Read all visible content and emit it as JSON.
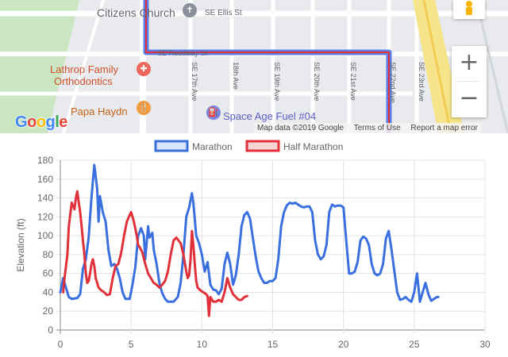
{
  "map": {
    "places": {
      "citizens_church": "Citizens Church",
      "lathrop_line1": "Lathrop Family",
      "lathrop_line2": "Orthodontics",
      "papa_haydn": "Papa Haydn",
      "space_age": "Space Age Fuel #04"
    },
    "streets": {
      "ellis": "SE Ellis St",
      "reedway": "SE Reedway St",
      "ave17": "SE 17th Ave",
      "ave18": "18th Ave",
      "ave19": "SE 19th Ave",
      "ave20": "SE 20th Ave",
      "ave21": "SE 21st Ave",
      "ave22": "SE 22nd Ave",
      "ave23": "SE 23rd Ave"
    },
    "logo": "Google",
    "attribution": {
      "map_data": "Map data ©2019 Google",
      "terms": "Terms of Use",
      "report": "Report a map error"
    },
    "controls": {
      "zoom_in": "+",
      "zoom_out": "−"
    },
    "route_color": "#5a7de6",
    "half_route_color": "#e0313a"
  },
  "chart_data": {
    "type": "line",
    "xlabel": "",
    "ylabel": "Elevation (ft)",
    "xlim": [
      0,
      30
    ],
    "ylim": [
      0,
      180
    ],
    "xticks": [
      0,
      5,
      10,
      15,
      20,
      25,
      30
    ],
    "yticks": [
      0,
      20,
      40,
      60,
      80,
      100,
      120,
      140,
      160,
      180
    ],
    "grid": true,
    "legend_position": "top",
    "series": [
      {
        "name": "Marathon",
        "color": "#3a6fe0",
        "fill": "#dbe5fa",
        "points": [
          [
            0,
            40
          ],
          [
            0.2,
            55
          ],
          [
            0.4,
            45
          ],
          [
            0.6,
            35
          ],
          [
            0.8,
            33
          ],
          [
            1.2,
            34
          ],
          [
            1.4,
            38
          ],
          [
            1.6,
            65
          ],
          [
            1.8,
            75
          ],
          [
            2,
            98
          ],
          [
            2.2,
            140
          ],
          [
            2.4,
            175
          ],
          [
            2.6,
            150
          ],
          [
            2.7,
            115
          ],
          [
            2.8,
            142
          ],
          [
            3.0,
            125
          ],
          [
            3.2,
            115
          ],
          [
            3.4,
            85
          ],
          [
            3.6,
            68
          ],
          [
            3.8,
            70
          ],
          [
            4.0,
            65
          ],
          [
            4.2,
            55
          ],
          [
            4.4,
            40
          ],
          [
            4.6,
            33
          ],
          [
            4.9,
            33
          ],
          [
            5.1,
            48
          ],
          [
            5.3,
            67
          ],
          [
            5.5,
            100
          ],
          [
            5.7,
            108
          ],
          [
            5.9,
            100
          ],
          [
            6.0,
            75
          ],
          [
            6.2,
            110
          ],
          [
            6.3,
            98
          ],
          [
            6.5,
            103
          ],
          [
            6.6,
            85
          ],
          [
            6.8,
            70
          ],
          [
            7.0,
            50
          ],
          [
            7.2,
            39
          ],
          [
            7.4,
            33
          ],
          [
            7.6,
            30
          ],
          [
            8.0,
            30
          ],
          [
            8.3,
            35
          ],
          [
            8.5,
            50
          ],
          [
            8.7,
            80
          ],
          [
            8.9,
            120
          ],
          [
            9.1,
            130
          ],
          [
            9.3,
            145
          ],
          [
            9.4,
            135
          ],
          [
            9.6,
            100
          ],
          [
            9.8,
            92
          ],
          [
            10.0,
            80
          ],
          [
            10.2,
            62
          ],
          [
            10.4,
            72
          ],
          [
            10.6,
            48
          ],
          [
            10.8,
            43
          ],
          [
            11.0,
            42
          ],
          [
            11.2,
            38
          ],
          [
            11.4,
            44
          ],
          [
            11.6,
            70
          ],
          [
            11.8,
            82
          ],
          [
            12.0,
            70
          ],
          [
            12.2,
            48
          ],
          [
            12.4,
            58
          ],
          [
            12.6,
            80
          ],
          [
            12.8,
            110
          ],
          [
            13.0,
            122
          ],
          [
            13.2,
            125
          ],
          [
            13.4,
            118
          ],
          [
            13.6,
            98
          ],
          [
            13.8,
            78
          ],
          [
            14.0,
            62
          ],
          [
            14.2,
            55
          ],
          [
            14.4,
            50
          ],
          [
            14.6,
            50
          ],
          [
            14.8,
            52
          ],
          [
            15.0,
            52
          ],
          [
            15.2,
            55
          ],
          [
            15.4,
            75
          ],
          [
            15.6,
            110
          ],
          [
            15.8,
            125
          ],
          [
            16.0,
            132
          ],
          [
            16.2,
            135
          ],
          [
            16.4,
            134
          ],
          [
            16.6,
            135
          ],
          [
            16.8,
            133
          ],
          [
            17.0,
            131
          ],
          [
            17.2,
            130
          ],
          [
            17.4,
            131
          ],
          [
            17.6,
            131
          ],
          [
            17.8,
            125
          ],
          [
            18.0,
            95
          ],
          [
            18.2,
            80
          ],
          [
            18.4,
            75
          ],
          [
            18.6,
            78
          ],
          [
            18.8,
            90
          ],
          [
            19.0,
            125
          ],
          [
            19.2,
            133
          ],
          [
            19.4,
            131
          ],
          [
            19.6,
            132
          ],
          [
            19.8,
            132
          ],
          [
            20.0,
            130
          ],
          [
            20.2,
            95
          ],
          [
            20.4,
            60
          ],
          [
            20.6,
            60
          ],
          [
            20.8,
            62
          ],
          [
            21.0,
            72
          ],
          [
            21.2,
            95
          ],
          [
            21.4,
            99
          ],
          [
            21.6,
            97
          ],
          [
            21.8,
            90
          ],
          [
            22.0,
            70
          ],
          [
            22.2,
            60
          ],
          [
            22.4,
            58
          ],
          [
            22.6,
            60
          ],
          [
            22.8,
            70
          ],
          [
            23.0,
            97
          ],
          [
            23.2,
            105
          ],
          [
            23.4,
            85
          ],
          [
            23.6,
            62
          ],
          [
            23.8,
            40
          ],
          [
            24.0,
            32
          ],
          [
            24.2,
            33
          ],
          [
            24.4,
            35
          ],
          [
            24.6,
            32
          ],
          [
            24.8,
            30
          ],
          [
            25.0,
            40
          ],
          [
            25.2,
            60
          ],
          [
            25.4,
            30
          ],
          [
            25.6,
            40
          ],
          [
            25.8,
            50
          ],
          [
            26.0,
            38
          ],
          [
            26.2,
            31
          ],
          [
            26.4,
            33
          ],
          [
            26.6,
            35
          ],
          [
            26.7,
            35
          ]
        ]
      },
      {
        "name": "Half Marathon",
        "color": "#e0313a",
        "fill": "#f6d5d7",
        "points": [
          [
            0.2,
            40
          ],
          [
            0.3,
            55
          ],
          [
            0.5,
            80
          ],
          [
            0.6,
            110
          ],
          [
            0.8,
            135
          ],
          [
            1.0,
            128
          ],
          [
            1.1,
            140
          ],
          [
            1.2,
            147
          ],
          [
            1.3,
            135
          ],
          [
            1.4,
            125
          ],
          [
            1.5,
            110
          ],
          [
            1.6,
            95
          ],
          [
            1.7,
            80
          ],
          [
            1.8,
            60
          ],
          [
            1.9,
            50
          ],
          [
            2.0,
            52
          ],
          [
            2.1,
            60
          ],
          [
            2.2,
            70
          ],
          [
            2.3,
            75
          ],
          [
            2.4,
            68
          ],
          [
            2.5,
            55
          ],
          [
            2.7,
            45
          ],
          [
            2.9,
            42
          ],
          [
            3.1,
            40
          ],
          [
            3.3,
            37
          ],
          [
            3.5,
            38
          ],
          [
            3.7,
            55
          ],
          [
            3.9,
            68
          ],
          [
            4.1,
            70
          ],
          [
            4.3,
            82
          ],
          [
            4.5,
            100
          ],
          [
            4.7,
            115
          ],
          [
            4.9,
            122
          ],
          [
            5.0,
            125
          ],
          [
            5.2,
            115
          ],
          [
            5.4,
            100
          ],
          [
            5.5,
            90
          ],
          [
            5.6,
            88
          ],
          [
            5.7,
            85
          ],
          [
            5.8,
            82
          ],
          [
            6.0,
            70
          ],
          [
            6.2,
            60
          ],
          [
            6.4,
            55
          ],
          [
            6.6,
            50
          ],
          [
            6.8,
            48
          ],
          [
            7.0,
            45
          ],
          [
            7.2,
            48
          ],
          [
            7.4,
            52
          ],
          [
            7.6,
            62
          ],
          [
            7.8,
            80
          ],
          [
            8.0,
            95
          ],
          [
            8.2,
            98
          ],
          [
            8.3,
            96
          ],
          [
            8.5,
            92
          ],
          [
            8.7,
            80
          ],
          [
            8.9,
            62
          ],
          [
            9.0,
            55
          ],
          [
            9.1,
            58
          ],
          [
            9.2,
            75
          ],
          [
            9.3,
            105
          ],
          [
            9.4,
            90
          ],
          [
            9.5,
            70
          ],
          [
            9.6,
            52
          ],
          [
            9.7,
            45
          ],
          [
            9.9,
            42
          ],
          [
            10.1,
            40
          ],
          [
            10.3,
            38
          ],
          [
            10.4,
            36
          ],
          [
            10.5,
            15
          ],
          [
            10.6,
            35
          ],
          [
            10.8,
            30
          ],
          [
            11.0,
            30
          ],
          [
            11.2,
            32
          ],
          [
            11.4,
            30
          ],
          [
            11.6,
            40
          ],
          [
            11.8,
            55
          ],
          [
            12.0,
            45
          ],
          [
            12.2,
            38
          ],
          [
            12.4,
            35
          ],
          [
            12.6,
            32
          ],
          [
            12.8,
            32
          ],
          [
            13.0,
            35
          ],
          [
            13.2,
            36
          ]
        ]
      }
    ]
  }
}
